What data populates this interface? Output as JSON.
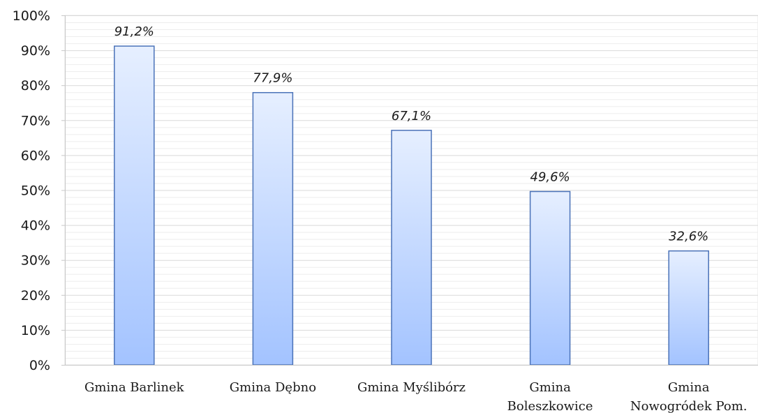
{
  "chart_data": {
    "type": "bar",
    "categories": [
      [
        "Gmina Barlinek"
      ],
      [
        "Gmina Dębno"
      ],
      [
        "Gmina Myślibórz"
      ],
      [
        "Gmina",
        "Boleszkowice"
      ],
      [
        "Gmina",
        "Nowogródek Pom."
      ]
    ],
    "values": [
      91.2,
      77.9,
      67.1,
      49.6,
      32.6
    ],
    "data_labels": [
      "91,2%",
      "77,9%",
      "67,1%",
      "49,6%",
      "32,6%"
    ],
    "ylim": [
      0,
      100
    ],
    "yticks": [
      0,
      10,
      20,
      30,
      40,
      50,
      60,
      70,
      80,
      90,
      100
    ],
    "ytick_labels": [
      "0%",
      "10%",
      "20%",
      "30%",
      "40%",
      "50%",
      "60%",
      "70%",
      "80%",
      "90%",
      "100%"
    ],
    "grid": "horizontal",
    "legend": "none",
    "bar_fill_top": "#e6efff",
    "bar_fill_bottom": "#a3c3ff",
    "bar_stroke": "#4a72b8",
    "grid_color": "#e6e6e6",
    "axis_color": "#c8c8c8"
  }
}
